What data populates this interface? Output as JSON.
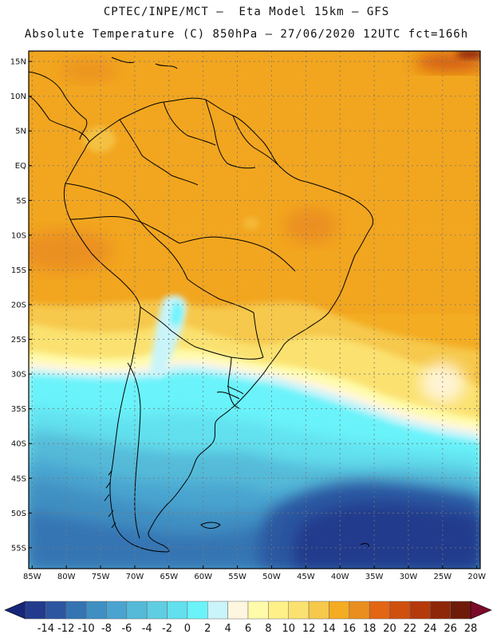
{
  "header": {
    "line1": "CPTEC/INPE/MCT –  Eta Model 15km – GFS",
    "line2": "Absolute Temperature (C) 850hPa – 27/06/2020 12UTC fct=166h"
  },
  "map": {
    "lat_labels": [
      "15N",
      "10N",
      "5N",
      "EQ",
      "5S",
      "10S",
      "15S",
      "20S",
      "25S",
      "30S",
      "35S",
      "40S",
      "45S",
      "50S",
      "55S"
    ],
    "lat_values": [
      15,
      10,
      5,
      0,
      -5,
      -10,
      -15,
      -20,
      -25,
      -30,
      -35,
      -40,
      -45,
      -50,
      -55
    ],
    "lon_labels": [
      "85W",
      "80W",
      "75W",
      "70W",
      "65W",
      "60W",
      "55W",
      "50W",
      "45W",
      "40W",
      "35W",
      "30W",
      "25W",
      "20W"
    ],
    "lon_values": [
      -85,
      -80,
      -75,
      -70,
      -65,
      -60,
      -55,
      -50,
      -45,
      -40,
      -35,
      -30,
      -25,
      -20
    ],
    "extent": {
      "lon_min": -85.5,
      "lon_max": -19.5,
      "lat_min": -58,
      "lat_max": 16.5
    },
    "gridline_style": "dotted"
  },
  "colorbar": {
    "labels": [
      "-14",
      "-12",
      "-10",
      "-8",
      "-6",
      "-4",
      "-2",
      "0",
      "2",
      "4",
      "6",
      "8",
      "10",
      "12",
      "14",
      "16",
      "18",
      "20",
      "22",
      "24",
      "26",
      "28"
    ],
    "colors": [
      "#233b8c",
      "#2c56a0",
      "#3574b3",
      "#3f8fc2",
      "#4aa4cf",
      "#55bad8",
      "#5fcde2",
      "#62e0ee",
      "#6bf3fa",
      "#c8f4fa",
      "#fff6df",
      "#fffbaa",
      "#fff08a",
      "#fbe170",
      "#f6c84c",
      "#f4ac22",
      "#ea8e20",
      "#e26614",
      "#cf4f0f",
      "#b53a0b",
      "#8e2608",
      "#6e1b0a"
    ],
    "under_color": "#16267a",
    "over_color": "#7a0a28"
  }
}
